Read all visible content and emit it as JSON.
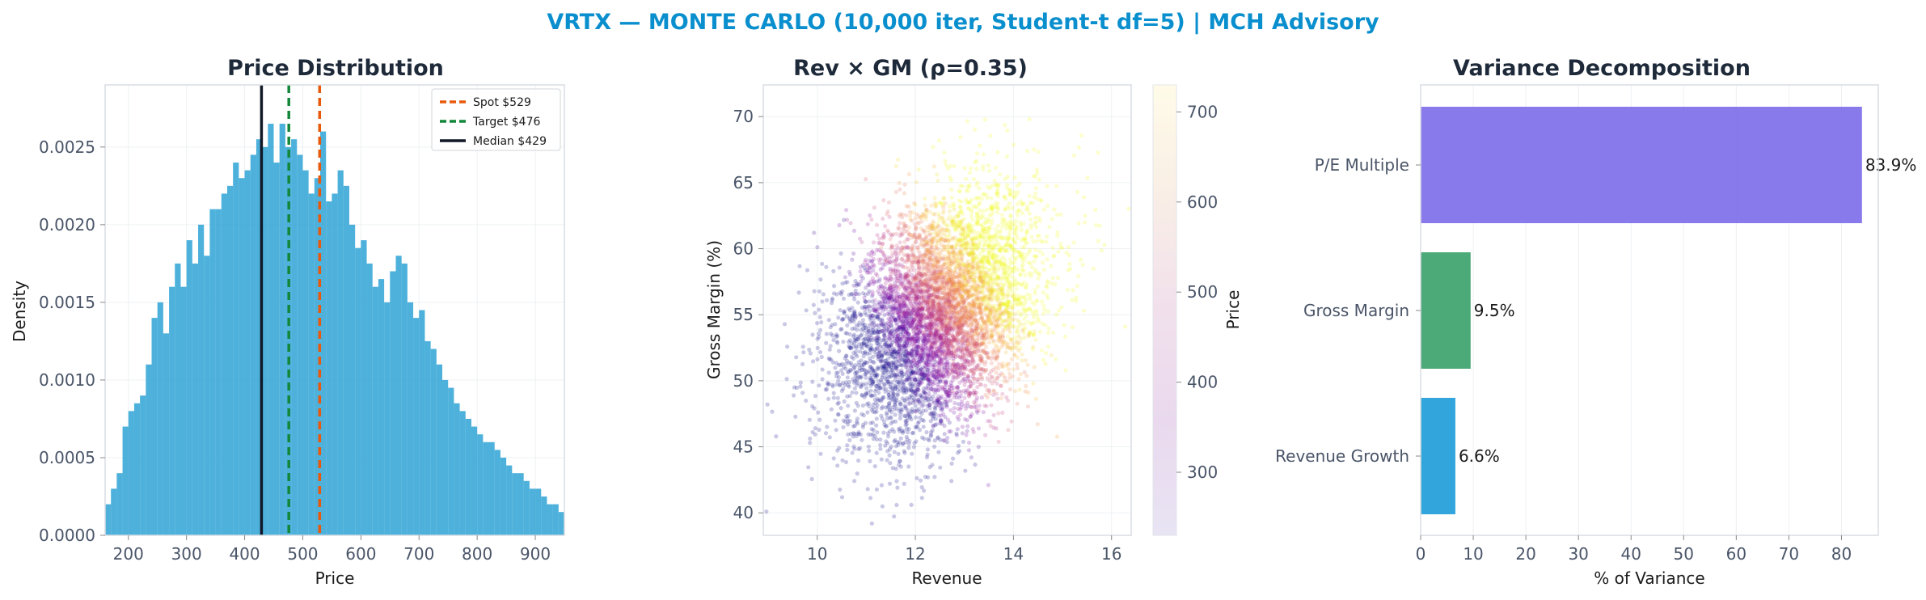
{
  "suptitle": "VRTX — MONTE CARLO (10,000 iter, Student-t df=5) | MCH Advisory",
  "colors": {
    "suptitle": "#0a8fce",
    "histogram": "#2ea3d5",
    "spot": "#e8590c",
    "target": "#12873a",
    "median": "#111827",
    "pe": "#7b6be8",
    "gross_margin": "#38a169",
    "revenue_growth": "#1c9cd8"
  },
  "chart_data": [
    {
      "type": "histogram",
      "title": "Price Distribution",
      "xlabel": "Price",
      "ylabel": "Density",
      "xlim": [
        160,
        950
      ],
      "ylim": [
        0,
        0.0029
      ],
      "xticks": [
        200,
        300,
        400,
        500,
        600,
        700,
        800,
        900
      ],
      "yticks": [
        "0.0000",
        "0.0005",
        "0.0010",
        "0.0015",
        "0.0020",
        "0.0025"
      ],
      "bin_start": 160,
      "bin_width": 10,
      "densities": [
        0.0002,
        0.0003,
        0.0004,
        0.0007,
        0.0008,
        0.00085,
        0.0009,
        0.0011,
        0.0014,
        0.0015,
        0.0013,
        0.0016,
        0.00175,
        0.0016,
        0.0019,
        0.00175,
        0.002,
        0.0018,
        0.0021,
        0.0021,
        0.0022,
        0.00225,
        0.0024,
        0.0023,
        0.00235,
        0.00245,
        0.00255,
        0.0025,
        0.00265,
        0.0024,
        0.00265,
        0.0025,
        0.00255,
        0.00245,
        0.00235,
        0.0022,
        0.0023,
        0.0026,
        0.00215,
        0.0022,
        0.00235,
        0.00225,
        0.002,
        0.00185,
        0.0019,
        0.00175,
        0.0016,
        0.00165,
        0.0015,
        0.0017,
        0.0018,
        0.00175,
        0.0015,
        0.0014,
        0.00145,
        0.00125,
        0.0012,
        0.0011,
        0.001,
        0.00095,
        0.00085,
        0.0008,
        0.00075,
        0.0007,
        0.00065,
        0.0006,
        0.0006,
        0.00055,
        0.0005,
        0.00045,
        0.0004,
        0.0004,
        0.00035,
        0.0003,
        0.0003,
        0.00025,
        0.0002,
        0.0002,
        0.00015
      ],
      "legend_position": "top-right",
      "lines": [
        {
          "name": "Spot $529",
          "x": 529,
          "style": "dashed",
          "color_key": "spot"
        },
        {
          "name": "Target $476",
          "x": 476,
          "style": "dashed",
          "color_key": "target"
        },
        {
          "name": "Median $429",
          "x": 429,
          "style": "solid",
          "color_key": "median"
        }
      ]
    },
    {
      "type": "scatter",
      "title": "Rev × GM (ρ=0.35)",
      "xlabel": "Revenue",
      "ylabel": "Gross Margin (%)",
      "xlim": [
        8.9,
        16.4
      ],
      "ylim": [
        38.3,
        72.4
      ],
      "xticks": [
        10,
        12,
        14,
        16
      ],
      "yticks": [
        40,
        45,
        50,
        55,
        60,
        65,
        70
      ],
      "n_points": 10000,
      "x_mean": 12.5,
      "x_sd": 1.0,
      "y_mean": 55.0,
      "y_sd": 4.5,
      "rho": 0.35,
      "colorbar": {
        "label": "Price",
        "range": [
          230,
          730
        ],
        "ticks": [
          300,
          400,
          500,
          600,
          700
        ],
        "colormap": "plasma"
      }
    },
    {
      "type": "bar",
      "orientation": "horizontal",
      "title": "Variance Decomposition",
      "xlabel": "% of Variance",
      "xlim": [
        0,
        87
      ],
      "xticks": [
        0,
        10,
        20,
        30,
        40,
        50,
        60,
        70,
        80
      ],
      "categories": [
        "P/E Multiple",
        "Gross Margin",
        "Revenue Growth"
      ],
      "values": [
        83.9,
        9.5,
        6.6
      ],
      "labels": [
        "83.9%",
        "9.5%",
        "6.6%"
      ],
      "color_keys": [
        "pe",
        "gross_margin",
        "revenue_growth"
      ]
    }
  ]
}
